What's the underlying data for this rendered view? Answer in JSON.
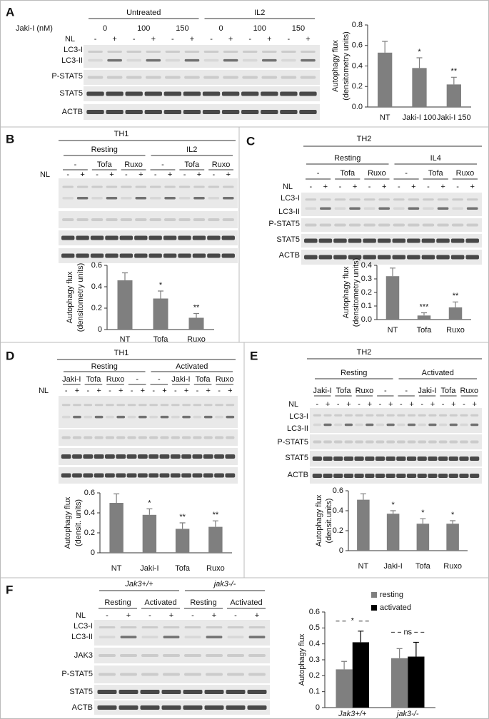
{
  "blots": [
    {
      "letter": "A",
      "conc_label": "Jaki-I (nM)",
      "groups": [
        "Untreated",
        "IL2"
      ],
      "subgroups": [
        "0",
        "100",
        "150",
        "0",
        "100",
        "150"
      ],
      "nl_label": "NL",
      "nl": [
        "-",
        "+",
        "-",
        "+",
        "-",
        "+",
        "-",
        "+",
        "-",
        "+",
        "-",
        "+"
      ],
      "rows": [
        "LC3-I",
        "LC3-II",
        "P-STAT5",
        "STAT5",
        "ACTB"
      ]
    },
    {
      "letter": "B",
      "title": "TH1",
      "groups": [
        "Resting",
        "IL2"
      ],
      "subgroups": [
        "-",
        "Tofa",
        "Ruxo",
        "-",
        "Tofa",
        "Ruxo"
      ],
      "nl_label": "NL",
      "nl": [
        "-",
        "+",
        "-",
        "+",
        "-",
        "+",
        "-",
        "+",
        "-",
        "+",
        "-",
        "+"
      ]
    },
    {
      "letter": "C",
      "title": "TH2",
      "groups": [
        "Resting",
        "IL4"
      ],
      "subgroups": [
        "-",
        "Tofa",
        "Ruxo",
        "-",
        "Tofa",
        "Ruxo"
      ],
      "nl_label": "NL",
      "nl": [
        "-",
        "+",
        "-",
        "+",
        "-",
        "+",
        "-",
        "+",
        "-",
        "+",
        "-",
        "+"
      ],
      "rows": [
        "LC3-I",
        "LC3-II",
        "P-STAT5",
        "STAT5",
        "ACTB"
      ]
    },
    {
      "letter": "D",
      "title": "TH1",
      "groups": [
        "Resting",
        "Activated"
      ],
      "subgroups": [
        "Jaki-I",
        "Tofa",
        "Ruxo",
        "-",
        "-",
        "Jaki-I",
        "Tofa",
        "Ruxo"
      ],
      "nl_label": "NL",
      "nl": [
        "-",
        "+",
        "-",
        "+",
        "-",
        "+",
        "-",
        "+",
        "-",
        "+",
        "-",
        "+",
        "-",
        "+",
        "-",
        "+"
      ]
    },
    {
      "letter": "E",
      "title": "TH2",
      "groups": [
        "Resting",
        "Activated"
      ],
      "subgroups": [
        "Jaki-I",
        "Tofa",
        "Ruxo",
        "-",
        "-",
        "Jaki-I",
        "Tofa",
        "Ruxo"
      ],
      "nl_label": "NL",
      "nl": [
        "-",
        "+",
        "-",
        "+",
        "-",
        "+",
        "-",
        "+",
        "-",
        "+",
        "-",
        "+",
        "-",
        "+",
        "-",
        "+"
      ],
      "rows": [
        "LC3-I",
        "LC3-II",
        "P-STAT5",
        "STAT5",
        "ACTB"
      ]
    },
    {
      "letter": "F",
      "groups": [
        "Jak3+/+",
        "jak3-/-"
      ],
      "subgroups": [
        "Resting",
        "Activated",
        "Resting",
        "Activated"
      ],
      "nl_label": "NL",
      "nl": [
        "-",
        "+",
        "-",
        "+",
        "-",
        "+",
        "-",
        "+"
      ],
      "rows": [
        "LC3-I",
        "LC3-II",
        "JAK3",
        "P-STAT5",
        "STAT5",
        "ACTB"
      ]
    }
  ],
  "chart_data": [
    {
      "type": "bar",
      "ylabel": [
        "Autophagy flux",
        "(densitometry units)"
      ],
      "categories": [
        "NT",
        "Jaki-I 100",
        "Jaki-I 150"
      ],
      "values": [
        0.53,
        0.38,
        0.22
      ],
      "errors": [
        0.11,
        0.1,
        0.07
      ],
      "significance": [
        null,
        "*",
        "**"
      ],
      "color": "#7f7f7f",
      "ylim": [
        0,
        0.8
      ],
      "yticks": [
        {
          "value": 0,
          "label": "0.0"
        },
        0.2,
        0.4,
        0.6,
        0.8
      ]
    },
    {
      "type": "bar",
      "ylabel": [
        "Autophagy flux",
        "(densitometry units)"
      ],
      "categories": [
        "NT",
        "Tofa",
        "Ruxo"
      ],
      "values": [
        0.46,
        0.29,
        0.11
      ],
      "errors": [
        0.07,
        0.07,
        0.04
      ],
      "significance": [
        null,
        "*",
        "**"
      ],
      "color": "#7f7f7f",
      "ylim": [
        0,
        0.6
      ],
      "yticks": [
        0,
        0.2,
        0.4,
        0.6
      ]
    },
    {
      "type": "bar",
      "ylabel": [
        "Autophagy flux",
        "(densitometry units)"
      ],
      "categories": [
        "NT",
        "Tofa",
        "Ruxo"
      ],
      "values": [
        0.32,
        0.03,
        0.09
      ],
      "errors": [
        0.06,
        0.02,
        0.04
      ],
      "significance": [
        null,
        "***",
        "**"
      ],
      "color": "#7f7f7f",
      "ylim": [
        0,
        0.4
      ],
      "yticks": [
        {
          "value": 0,
          "label": "0.0"
        },
        0.1,
        0.2,
        0.3,
        0.4
      ]
    },
    {
      "type": "bar",
      "ylabel": [
        "Autophagy flux",
        "(densit. units)"
      ],
      "categories": [
        "NT",
        "Jaki-I",
        "Tofa",
        "Ruxo"
      ],
      "values": [
        0.5,
        0.38,
        0.24,
        0.26
      ],
      "errors": [
        0.09,
        0.06,
        0.06,
        0.06
      ],
      "significance": [
        null,
        "*",
        "**",
        "**"
      ],
      "color": "#7f7f7f",
      "ylim": [
        0,
        0.6
      ],
      "yticks": [
        0,
        0.2,
        0.4,
        0.6
      ]
    },
    {
      "type": "bar",
      "ylabel": [
        "Autophagy flux",
        "(densit.units)"
      ],
      "categories": [
        "NT",
        "Jaki-I",
        "Tofa",
        "Ruxo"
      ],
      "values": [
        0.51,
        0.37,
        0.27,
        0.27
      ],
      "errors": [
        0.06,
        0.03,
        0.05,
        0.03
      ],
      "significance": [
        null,
        "*",
        "*",
        "*"
      ],
      "color": "#7f7f7f",
      "ylim": [
        0,
        0.6
      ],
      "yticks": [
        0,
        0.2,
        0.4,
        0.6
      ]
    },
    {
      "type": "bar",
      "ylabel": [
        "Autophagy flux"
      ],
      "categories": [
        "Jak3+/+",
        "jak3-/-"
      ],
      "series": [
        {
          "name": "resting",
          "color": "#7f7f7f",
          "values": [
            0.24,
            0.31
          ],
          "errors": [
            0.05,
            0.06
          ]
        },
        {
          "name": "activated",
          "color": "#000000",
          "values": [
            0.41,
            0.32
          ],
          "errors": [
            0.07,
            0.09
          ]
        }
      ],
      "significance": [
        "*",
        "ns"
      ],
      "ylim": [
        0,
        0.6
      ],
      "yticks": [
        0,
        0.1,
        0.2,
        0.3,
        0.4,
        0.5,
        0.6
      ]
    }
  ]
}
